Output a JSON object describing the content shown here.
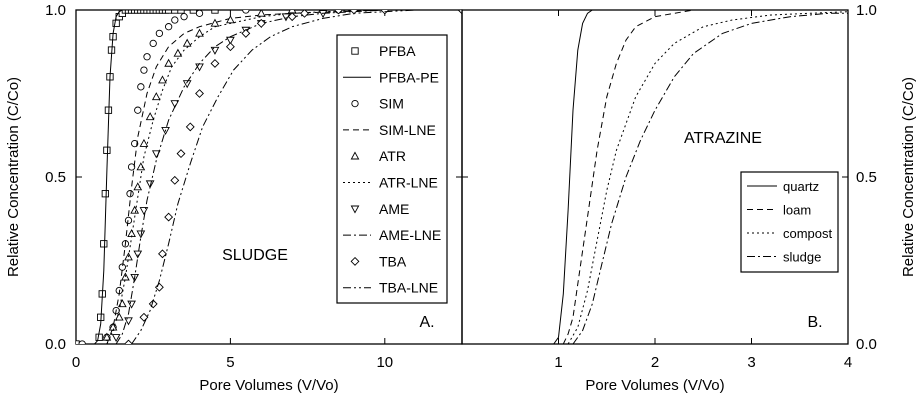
{
  "chart_data": [
    {
      "type": "scatter",
      "panel_label": "A.",
      "annotation": "SLUDGE",
      "xlabel": "Pore Volumes (V/Vo)",
      "ylabel": "Relative Concentration (C/Co)",
      "xlim": [
        0,
        12.5
      ],
      "ylim": [
        0,
        1
      ],
      "xticks": [
        {
          "v": 0,
          "label": "0"
        },
        {
          "v": 5,
          "label": "5"
        },
        {
          "v": 10,
          "label": "10"
        }
      ],
      "yticks": [
        {
          "v": 0,
          "label": "0.0"
        },
        {
          "v": 0.5,
          "label": "0.5"
        },
        {
          "v": 1,
          "label": "1.0"
        }
      ],
      "legend_position": "upper-right",
      "series": [
        {
          "name": "PFBA",
          "kind": "points",
          "marker": "square",
          "x": [
            0.0,
            0.75,
            0.8,
            0.85,
            0.9,
            0.95,
            1.0,
            1.05,
            1.1,
            1.15,
            1.2,
            1.3,
            1.4,
            1.5,
            1.6,
            1.7,
            1.8,
            1.9,
            2.0,
            2.1,
            2.2,
            2.3,
            2.4,
            2.5,
            2.6,
            2.7,
            2.8,
            2.9,
            3.0,
            3.2,
            3.4,
            3.8,
            4.5
          ],
          "y": [
            0.0,
            0.02,
            0.08,
            0.15,
            0.3,
            0.45,
            0.58,
            0.7,
            0.8,
            0.88,
            0.92,
            0.96,
            0.98,
            0.99,
            1.0,
            1.0,
            1.0,
            1.0,
            1.0,
            1.0,
            1.0,
            1.0,
            1.0,
            1.0,
            1.0,
            1.0,
            1.0,
            1.0,
            1.0,
            1.0,
            1.0,
            1.0,
            1.0
          ]
        },
        {
          "name": "PFBA-PE",
          "kind": "line",
          "dash": "",
          "x": [
            0.6,
            0.7,
            0.8,
            0.9,
            1.0,
            1.1,
            1.2,
            1.3,
            1.4,
            1.5,
            1.6,
            1.8,
            2.0,
            12.5
          ],
          "y": [
            0.0,
            0.01,
            0.06,
            0.22,
            0.52,
            0.8,
            0.93,
            0.98,
            0.995,
            1.0,
            1.0,
            1.0,
            1.0,
            1.0
          ]
        },
        {
          "name": "SIM",
          "kind": "points",
          "marker": "circle",
          "x": [
            0.2,
            1.0,
            1.2,
            1.3,
            1.4,
            1.5,
            1.6,
            1.7,
            1.75,
            1.8,
            1.9,
            2.0,
            2.1,
            2.2,
            2.3,
            2.5,
            2.7,
            3.0,
            3.2,
            3.5,
            4.0,
            5.5,
            8.5
          ],
          "y": [
            0.0,
            0.02,
            0.05,
            0.1,
            0.16,
            0.23,
            0.3,
            0.37,
            0.45,
            0.53,
            0.6,
            0.7,
            0.77,
            0.82,
            0.86,
            0.9,
            0.93,
            0.95,
            0.97,
            0.98,
            0.99,
            1.0,
            1.0
          ]
        },
        {
          "name": "SIM-LNE",
          "kind": "line",
          "dash": "6,4",
          "x": [
            1.0,
            1.2,
            1.4,
            1.6,
            1.8,
            2.0,
            2.3,
            2.6,
            3.0,
            3.5,
            4.0,
            5.0,
            6.0,
            7.0,
            8.5,
            10.0,
            12.5
          ],
          "y": [
            0.0,
            0.05,
            0.15,
            0.3,
            0.47,
            0.62,
            0.75,
            0.83,
            0.89,
            0.93,
            0.95,
            0.975,
            0.985,
            0.99,
            0.995,
            1.0,
            1.0
          ]
        },
        {
          "name": "ATR",
          "kind": "points",
          "marker": "triangle-up",
          "x": [
            1.0,
            1.2,
            1.4,
            1.5,
            1.6,
            1.7,
            1.8,
            1.9,
            2.0,
            2.1,
            2.2,
            2.4,
            2.6,
            2.8,
            3.0,
            3.3,
            3.6,
            4.0,
            4.5,
            5.0,
            6.0,
            7.0
          ],
          "y": [
            0.02,
            0.05,
            0.08,
            0.12,
            0.2,
            0.26,
            0.33,
            0.4,
            0.47,
            0.53,
            0.6,
            0.68,
            0.74,
            0.79,
            0.84,
            0.87,
            0.9,
            0.93,
            0.96,
            0.97,
            0.99,
            1.0
          ]
        },
        {
          "name": "ATR-LNE",
          "kind": "line",
          "dash": "2,3",
          "x": [
            1.0,
            1.2,
            1.4,
            1.6,
            1.8,
            2.0,
            2.2,
            2.5,
            2.8,
            3.1,
            3.5,
            4.0,
            4.5,
            5.0,
            6.0,
            7.0,
            8.0,
            10.0,
            12.5
          ],
          "y": [
            0.0,
            0.04,
            0.1,
            0.2,
            0.32,
            0.44,
            0.56,
            0.67,
            0.76,
            0.83,
            0.88,
            0.92,
            0.95,
            0.96,
            0.98,
            0.99,
            0.995,
            1.0,
            1.0
          ]
        },
        {
          "name": "AME",
          "kind": "points",
          "marker": "triangle-down",
          "x": [
            1.3,
            1.7,
            1.8,
            1.9,
            2.0,
            2.1,
            2.2,
            2.4,
            2.6,
            2.9,
            3.2,
            3.6,
            4.0,
            4.5,
            5.0,
            5.5,
            6.0,
            6.8,
            8.0,
            9.0
          ],
          "y": [
            0.02,
            0.07,
            0.12,
            0.2,
            0.27,
            0.33,
            0.4,
            0.48,
            0.57,
            0.64,
            0.72,
            0.78,
            0.83,
            0.88,
            0.91,
            0.94,
            0.96,
            0.98,
            0.99,
            1.0
          ]
        },
        {
          "name": "AME-LNE",
          "kind": "line",
          "dash": "8,3,2,3",
          "x": [
            1.3,
            1.5,
            1.7,
            1.9,
            2.1,
            2.3,
            2.6,
            3.0,
            3.5,
            4.0,
            4.5,
            5.0,
            6.0,
            7.0,
            8.0,
            9.0,
            10.0,
            12.5
          ],
          "y": [
            0.0,
            0.03,
            0.09,
            0.2,
            0.32,
            0.43,
            0.55,
            0.67,
            0.77,
            0.84,
            0.89,
            0.92,
            0.96,
            0.98,
            0.99,
            0.995,
            1.0,
            1.0
          ]
        },
        {
          "name": "TBA",
          "kind": "points",
          "marker": "diamond",
          "x": [
            1.7,
            2.2,
            2.5,
            2.7,
            2.8,
            3.0,
            3.2,
            3.4,
            3.7,
            4.0,
            4.5,
            5.0,
            5.5,
            6.0,
            7.0,
            7.4,
            8.5,
            9.0,
            10.0,
            12.5
          ],
          "y": [
            0.0,
            0.08,
            0.12,
            0.17,
            0.27,
            0.38,
            0.49,
            0.57,
            0.65,
            0.75,
            0.84,
            0.89,
            0.93,
            0.96,
            0.98,
            0.99,
            1.0,
            1.0,
            1.0,
            1.0
          ]
        },
        {
          "name": "TBA-LNE",
          "kind": "line",
          "dash": "8,3,2,3,2,3",
          "x": [
            1.8,
            2.1,
            2.4,
            2.7,
            3.0,
            3.3,
            3.7,
            4.1,
            4.6,
            5.1,
            5.7,
            6.3,
            7.0,
            8.0,
            9.0,
            10.0,
            11.0,
            12.5
          ],
          "y": [
            0.0,
            0.04,
            0.1,
            0.19,
            0.3,
            0.42,
            0.54,
            0.65,
            0.74,
            0.82,
            0.88,
            0.92,
            0.95,
            0.975,
            0.99,
            0.995,
            1.0,
            1.0
          ]
        }
      ]
    },
    {
      "type": "line",
      "panel_label": "B.",
      "annotation": "ATRAZINE",
      "xlabel": "Pore Volumes (V/Vo)",
      "ylabel": "Relative Concentration (C/Co)",
      "xlim": [
        0,
        4
      ],
      "ylim": [
        0,
        1
      ],
      "xticks": [
        {
          "v": 1,
          "label": "1"
        },
        {
          "v": 2,
          "label": "2"
        },
        {
          "v": 3,
          "label": "3"
        },
        {
          "v": 4,
          "label": "4"
        }
      ],
      "yticks": [
        {
          "v": 0,
          "label": "0.0"
        },
        {
          "v": 0.5,
          "label": "0.5"
        },
        {
          "v": 1,
          "label": "1.0"
        }
      ],
      "legend_position": "lower-right",
      "series": [
        {
          "name": "quartz",
          "dash": "",
          "x": [
            0.95,
            1.0,
            1.05,
            1.1,
            1.15,
            1.2,
            1.25,
            1.3,
            1.35,
            1.4,
            4.0
          ],
          "y": [
            0.0,
            0.02,
            0.15,
            0.4,
            0.7,
            0.88,
            0.96,
            0.99,
            1.0,
            1.0,
            1.0
          ]
        },
        {
          "name": "loam",
          "dash": "6,4",
          "x": [
            1.05,
            1.1,
            1.15,
            1.2,
            1.3,
            1.4,
            1.5,
            1.6,
            1.7,
            1.8,
            2.0,
            2.2,
            2.4,
            4.0
          ],
          "y": [
            0.0,
            0.03,
            0.08,
            0.18,
            0.38,
            0.58,
            0.74,
            0.84,
            0.91,
            0.95,
            0.98,
            0.99,
            1.0,
            1.0
          ]
        },
        {
          "name": "compost",
          "dash": "2,3",
          "x": [
            1.1,
            1.2,
            1.3,
            1.4,
            1.5,
            1.6,
            1.8,
            2.0,
            2.2,
            2.5,
            2.8,
            3.2,
            3.6,
            4.0
          ],
          "y": [
            0.0,
            0.05,
            0.16,
            0.31,
            0.46,
            0.58,
            0.74,
            0.84,
            0.9,
            0.95,
            0.97,
            0.985,
            0.99,
            0.995
          ]
        },
        {
          "name": "sludge",
          "dash": "8,3,2,3",
          "x": [
            1.15,
            1.25,
            1.35,
            1.45,
            1.55,
            1.7,
            1.85,
            2.0,
            2.2,
            2.4,
            2.7,
            3.0,
            3.4,
            3.8,
            4.0
          ],
          "y": [
            0.0,
            0.04,
            0.12,
            0.24,
            0.36,
            0.5,
            0.61,
            0.7,
            0.8,
            0.87,
            0.93,
            0.96,
            0.98,
            0.99,
            0.99
          ]
        }
      ]
    }
  ]
}
